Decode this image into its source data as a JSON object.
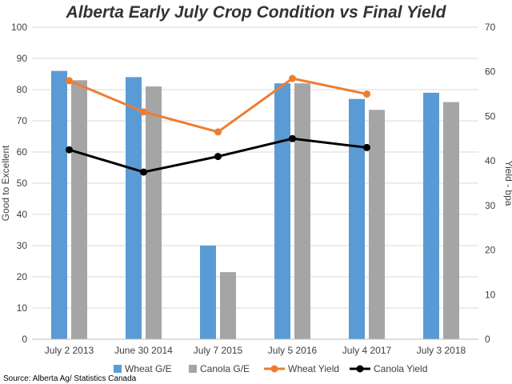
{
  "chart_data": {
    "type": "bar",
    "title": "Alberta Early July Crop Condition vs Final Yield",
    "categories": [
      "July 2 2013",
      "June 30 2014",
      "July 7 2015",
      "July 5 2016",
      "July 4 2017",
      "July 3 2018"
    ],
    "ylabel": "Good to Excellent",
    "y2label": "Yield - bpa",
    "ylim": [
      0,
      100
    ],
    "y2lim": [
      0,
      70
    ],
    "yticks": [
      "0",
      "10",
      "20",
      "30",
      "40",
      "50",
      "60",
      "70",
      "80",
      "90",
      "100"
    ],
    "y2ticks": [
      "0",
      "10",
      "20",
      "30",
      "40",
      "50",
      "60",
      "70"
    ],
    "grid": true,
    "legend_position": "bottom",
    "series": [
      {
        "name": "Wheat G/E",
        "kind": "bar",
        "axis": "left",
        "color": "#5B9BD5",
        "values": [
          86,
          84,
          30,
          82,
          77,
          79
        ]
      },
      {
        "name": "Canola G/E",
        "kind": "bar",
        "axis": "left",
        "color": "#A5A5A5",
        "values": [
          83,
          81,
          21.5,
          82,
          73.5,
          76
        ]
      },
      {
        "name": "Wheat Yield",
        "kind": "line",
        "axis": "right",
        "color": "#ED7D31",
        "values": [
          58,
          51,
          46.5,
          58.5,
          55,
          null
        ]
      },
      {
        "name": "Canola Yield",
        "kind": "line",
        "axis": "right",
        "color": "#000000",
        "values": [
          42.5,
          37.5,
          41,
          45,
          43,
          null
        ]
      }
    ],
    "source": "Source: Alberta Ag/ Statistics Canada"
  }
}
